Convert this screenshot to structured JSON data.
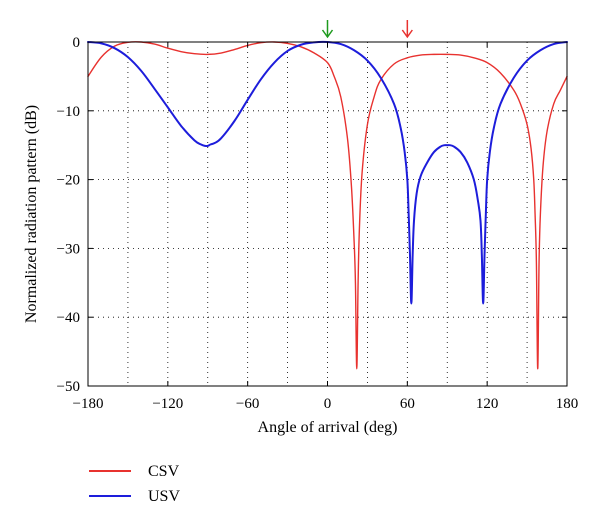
{
  "chart_data": {
    "type": "line",
    "title": "",
    "xlabel": "Angle of arrival (deg)",
    "ylabel": "Normalized radiation pattern (dB)",
    "xlim": [
      -180,
      180
    ],
    "ylim": [
      -50,
      0
    ],
    "xticks": [
      -180,
      -120,
      -60,
      0,
      60,
      120,
      180
    ],
    "yticks": [
      0,
      -10,
      -20,
      -30,
      -40,
      -50
    ],
    "grid": true,
    "grid_style": "dotted",
    "legend_position": "bottom-left, below the plot",
    "series": [
      {
        "name": "CSV",
        "color": "#e8322f",
        "x": [
          -180,
          -170,
          -160,
          -150,
          -140,
          -130,
          -120,
          -110,
          -100,
          -90,
          -80,
          -70,
          -60,
          -50,
          -40,
          -30,
          -20,
          -10,
          0,
          5,
          10,
          15,
          18,
          20,
          21,
          22,
          23,
          24,
          26,
          30,
          35,
          40,
          50,
          60,
          70,
          80,
          90,
          100,
          110,
          120,
          130,
          140,
          145,
          150,
          153,
          155,
          156,
          157,
          158,
          159,
          160,
          162,
          165,
          170,
          175,
          180
        ],
        "y": [
          -5,
          -2.2,
          -0.6,
          -0.05,
          0,
          -0.3,
          -0.9,
          -1.4,
          -1.7,
          -1.8,
          -1.6,
          -1.1,
          -0.5,
          -0.1,
          0,
          -0.2,
          -0.7,
          -1.6,
          -3,
          -5,
          -8,
          -14,
          -21,
          -29,
          -35,
          -47.5,
          -35,
          -27,
          -19,
          -12,
          -8,
          -5.5,
          -3.2,
          -2.3,
          -1.9,
          -1.8,
          -1.8,
          -1.9,
          -2.3,
          -3,
          -4.5,
          -7,
          -9,
          -12,
          -15.5,
          -20,
          -25,
          -32,
          -47.5,
          -32,
          -25,
          -18,
          -13,
          -9,
          -7,
          -5
        ]
      },
      {
        "name": "USV",
        "color": "#1d1ddb",
        "x": [
          -180,
          -170,
          -160,
          -150,
          -140,
          -130,
          -120,
          -110,
          -100,
          -95,
          -92,
          -90,
          -88,
          -85,
          -80,
          -70,
          -60,
          -50,
          -40,
          -30,
          -20,
          -10,
          0,
          10,
          20,
          30,
          40,
          50,
          55,
          58,
          60,
          61,
          62,
          63,
          64,
          65,
          67,
          70,
          75,
          80,
          85,
          88,
          90,
          92,
          95,
          100,
          105,
          110,
          113,
          115,
          116,
          117,
          118,
          119,
          120,
          122,
          125,
          130,
          140,
          150,
          160,
          170,
          180
        ],
        "y": [
          0,
          -0.2,
          -0.9,
          -2.2,
          -4.2,
          -6.8,
          -9.5,
          -12.2,
          -14.3,
          -14.9,
          -15.1,
          -15.1,
          -14.9,
          -14.7,
          -14,
          -11.5,
          -8.4,
          -5.4,
          -3,
          -1.3,
          -0.4,
          -0.05,
          0,
          -0.3,
          -1.2,
          -2.7,
          -5.2,
          -9,
          -12.5,
          -16,
          -20,
          -25,
          -31,
          -38,
          -31,
          -26,
          -22,
          -19.5,
          -17.5,
          -16,
          -15.2,
          -15,
          -15,
          -15,
          -15.2,
          -16,
          -17.5,
          -20,
          -23,
          -26,
          -31,
          -38,
          -31,
          -25,
          -20,
          -16,
          -12.5,
          -9,
          -5.2,
          -2.7,
          -1.2,
          -0.3,
          0
        ]
      }
    ],
    "annotations": [
      {
        "type": "arrow",
        "x": 0,
        "color": "#1e9a1e"
      },
      {
        "type": "arrow",
        "x": 60,
        "color": "#e8322f"
      }
    ]
  }
}
